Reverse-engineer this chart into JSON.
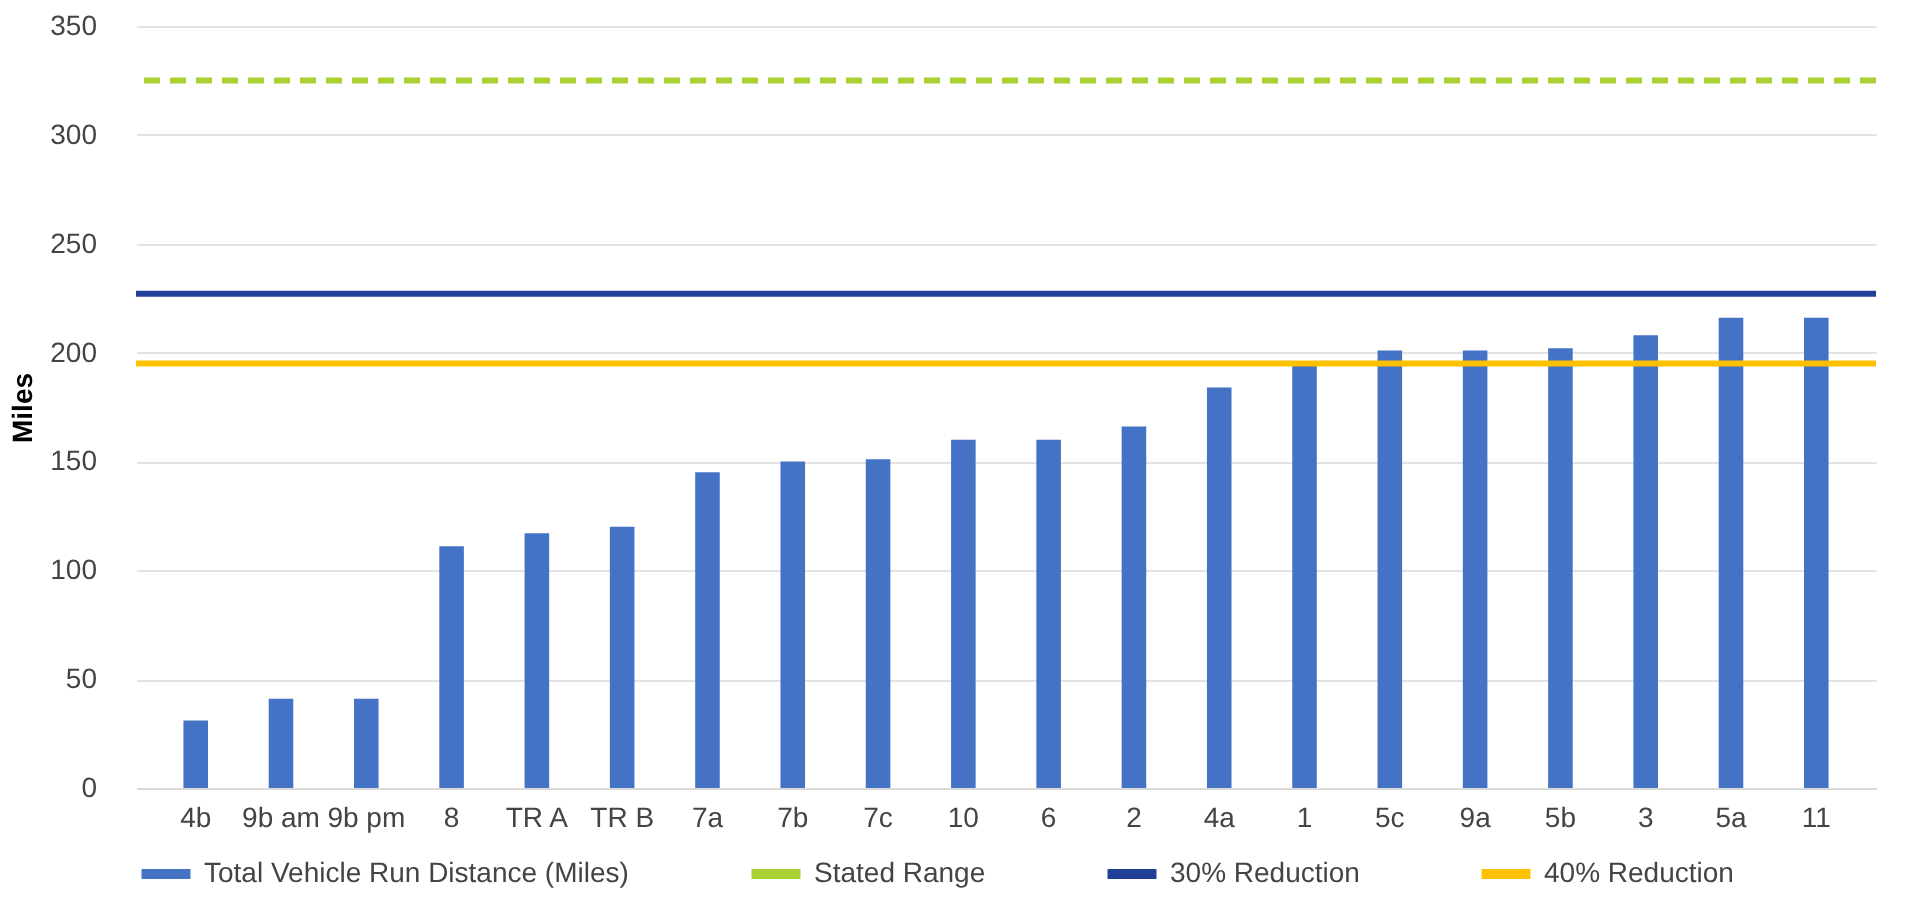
{
  "chart_data": {
    "type": "bar",
    "ylabel": "Miles",
    "categories": [
      "4b",
      "9b am",
      "9b pm",
      "8",
      "TR A",
      "TR B",
      "7a",
      "7b",
      "7c",
      "10",
      "6",
      "2",
      "4a",
      "1",
      "5c",
      "9a",
      "5b",
      "3",
      "5a",
      "11"
    ],
    "series": [
      {
        "name": "Total Vehicle Run Distance (Miles)",
        "color": "#4472c4",
        "values": [
          31,
          41,
          41,
          111,
          117,
          120,
          145,
          150,
          151,
          160,
          160,
          166,
          184,
          194,
          201,
          201,
          202,
          208,
          216,
          216
        ]
      }
    ],
    "ref_lines": [
      {
        "axis": "y",
        "value": 325,
        "label": "Stated Range",
        "color": "#a9d134",
        "line_style": "dashed"
      },
      {
        "axis": "y",
        "value": 227,
        "label": "30% Reduction",
        "color": "#203f97",
        "line_style": "solid"
      },
      {
        "axis": "y",
        "value": 195,
        "label": "40% Reduction",
        "color": "#ffc000",
        "line_style": "solid"
      }
    ],
    "ylim": [
      0,
      350
    ],
    "yticks": [
      0,
      50,
      100,
      150,
      200,
      250,
      300,
      350
    ],
    "grid": "y",
    "legend": "bottom"
  }
}
